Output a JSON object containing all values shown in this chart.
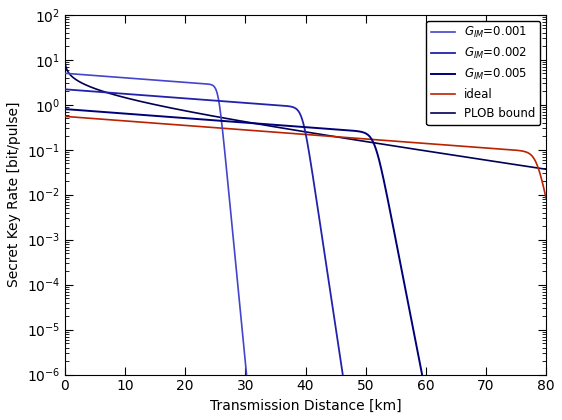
{
  "title": "",
  "xlabel": "Transmission Distance [km]",
  "ylabel": "Secret Key Rate [bit/pulse]",
  "xlim": [
    0,
    80
  ],
  "ylim_log": [
    -6,
    2
  ],
  "background_color": "#ffffff",
  "fiber_loss_dB_per_km": 0.2,
  "curves": [
    {
      "label": "$G_{IM}$=0.001",
      "color": "#4444cc",
      "linewidth": 1.2,
      "G_IM": 0.001,
      "v0": 5.0,
      "cutoff_km": 25.5,
      "steepness": 80
    },
    {
      "label": "$G_{IM}$=0.002",
      "color": "#2222aa",
      "linewidth": 1.3,
      "G_IM": 0.002,
      "v0": 2.2,
      "cutoff_km": 39.5,
      "steepness": 80
    },
    {
      "label": "$G_{IM}$=0.005",
      "color": "#000077",
      "linewidth": 1.4,
      "G_IM": 0.005,
      "v0": 0.8,
      "cutoff_km": 51.5,
      "steepness": 80
    }
  ],
  "ideal_color": "#bb2200",
  "ideal_linewidth": 1.2,
  "ideal_v0": 0.55,
  "ideal_cutoff_km": 78.5,
  "ideal_steepness": 120,
  "plob_color": "#000055",
  "plob_linewidth": 1.2,
  "legend_loc": "upper right",
  "legend_fontsize": 8.5
}
